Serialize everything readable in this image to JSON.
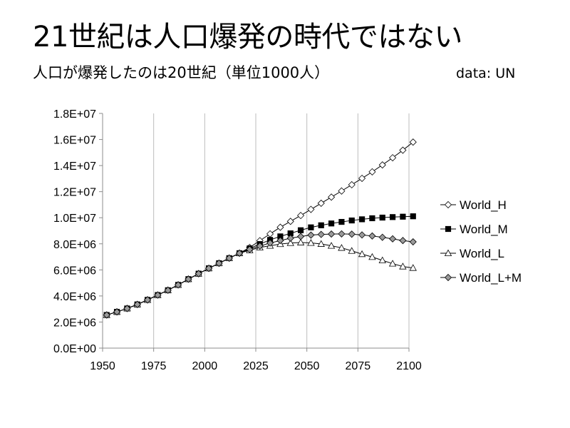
{
  "header": {
    "title": "21世紀は人口爆発の時代ではない",
    "subtitle": "人口が爆発したのは20世紀（単位1000人）",
    "source": "data: UN"
  },
  "chart_data": {
    "type": "line",
    "title": "21世紀は人口爆発の時代ではない",
    "subtitle": "人口が爆発したのは20世紀（単位1000人）",
    "xlabel": "",
    "ylabel": "",
    "xlim": [
      1950,
      2100
    ],
    "ylim": [
      0,
      18000000
    ],
    "x_ticks": [
      1950,
      1975,
      2000,
      2025,
      2050,
      2075,
      2100
    ],
    "y_ticks": [
      0,
      2000000,
      4000000,
      6000000,
      8000000,
      10000000,
      12000000,
      14000000,
      16000000,
      18000000
    ],
    "y_tick_labels": [
      "0.0E+00",
      "2.0E+06",
      "4.0E+06",
      "6.0E+06",
      "8.0E+06",
      "1.0E+07",
      "1.2E+07",
      "1.4E+07",
      "1.6E+07",
      "1.8E+07"
    ],
    "grid": "vertical",
    "legend_position": "right",
    "x": [
      1952,
      1957,
      1962,
      1967,
      1972,
      1977,
      1982,
      1987,
      1992,
      1997,
      2002,
      2007,
      2012,
      2017,
      2022,
      2027,
      2032,
      2037,
      2042,
      2047,
      2052,
      2057,
      2062,
      2067,
      2072,
      2077,
      2082,
      2087,
      2092,
      2097,
      2102
    ],
    "series": [
      {
        "name": "World_H",
        "marker": "diamond-open",
        "values": [
          2540000,
          2780000,
          3040000,
          3350000,
          3700000,
          4070000,
          4440000,
          4850000,
          5290000,
          5710000,
          6120000,
          6510000,
          6900000,
          7280000,
          7720000,
          8240000,
          8760000,
          9270000,
          9720000,
          10170000,
          10640000,
          11110000,
          11580000,
          12050000,
          12530000,
          13020000,
          13520000,
          14050000,
          14600000,
          15180000,
          15800000
        ]
      },
      {
        "name": "World_M",
        "marker": "square-filled",
        "values": [
          2540000,
          2780000,
          3040000,
          3350000,
          3700000,
          4070000,
          4440000,
          4850000,
          5290000,
          5710000,
          6120000,
          6510000,
          6900000,
          7280000,
          7650000,
          7980000,
          8300000,
          8570000,
          8800000,
          9040000,
          9260000,
          9420000,
          9560000,
          9680000,
          9790000,
          9880000,
          9960000,
          10010000,
          10050000,
          10080000,
          10110000
        ]
      },
      {
        "name": "World_L",
        "marker": "triangle-open",
        "values": [
          2540000,
          2780000,
          3040000,
          3350000,
          3700000,
          4070000,
          4440000,
          4850000,
          5290000,
          5710000,
          6120000,
          6510000,
          6900000,
          7280000,
          7500000,
          7720000,
          7850000,
          7980000,
          8060000,
          8100000,
          8070000,
          7990000,
          7850000,
          7690000,
          7460000,
          7210000,
          6990000,
          6730000,
          6480000,
          6260000,
          6150000
        ]
      },
      {
        "name": "World_L+M",
        "marker": "diamond-filled",
        "values": [
          2540000,
          2780000,
          3040000,
          3350000,
          3700000,
          4070000,
          4440000,
          4850000,
          5290000,
          5710000,
          6120000,
          6510000,
          6900000,
          7280000,
          7570000,
          7830000,
          8060000,
          8250000,
          8430000,
          8560000,
          8670000,
          8720000,
          8750000,
          8760000,
          8740000,
          8680000,
          8600000,
          8500000,
          8380000,
          8250000,
          8150000
        ]
      }
    ]
  }
}
